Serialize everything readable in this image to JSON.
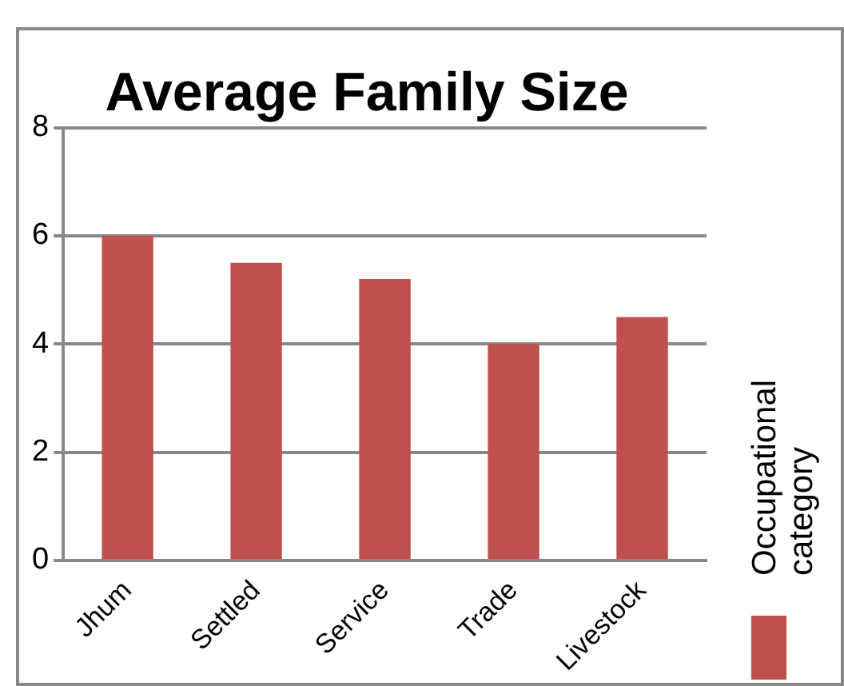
{
  "chart_data": {
    "type": "bar",
    "title": "Average Family Size",
    "categories": [
      "Jhum",
      "Settled",
      "Service",
      "Trade",
      "Livestock"
    ],
    "series": [
      {
        "name": "Occupational category",
        "color": "#c0504d",
        "values": [
          6,
          5.5,
          5.2,
          4.0,
          4.5
        ]
      }
    ],
    "ylim": [
      0,
      8
    ],
    "yticks": [
      0,
      2,
      4,
      6,
      8
    ],
    "grid": "y",
    "legend": "right"
  }
}
